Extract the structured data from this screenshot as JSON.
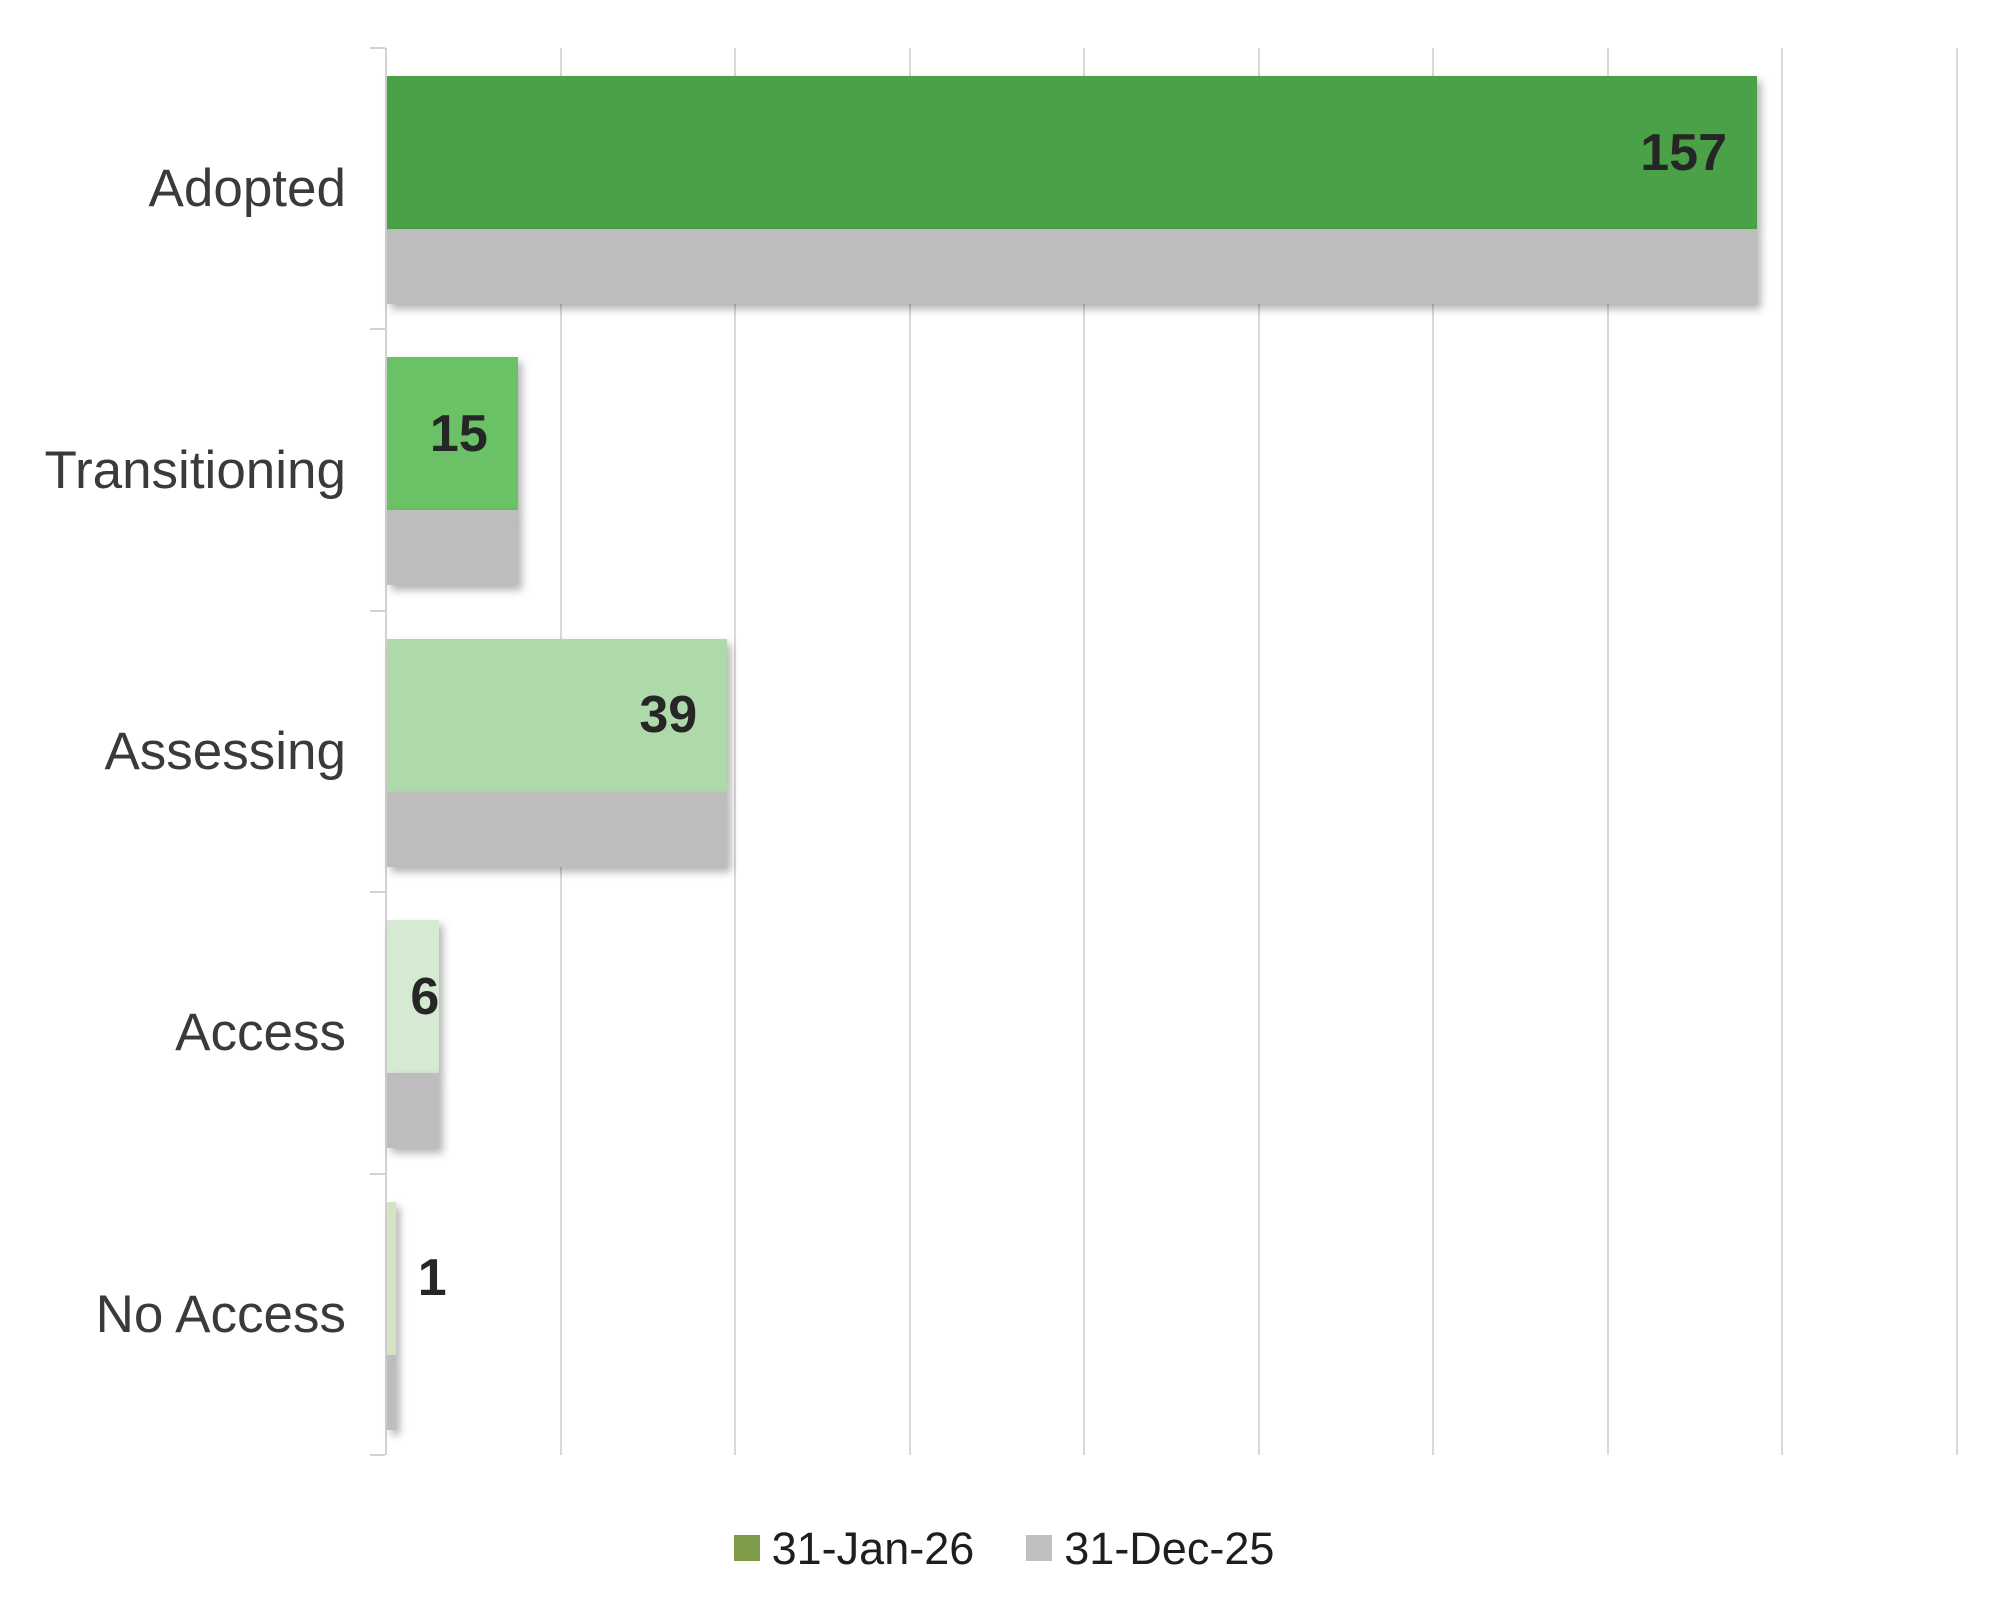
{
  "chart_data": {
    "type": "bar",
    "orientation": "horizontal",
    "title": "",
    "xlabel": "",
    "ylabel": "",
    "categories": [
      "Adopted",
      "Transitioning",
      "Assessing",
      "Access",
      "No Access"
    ],
    "series": [
      {
        "name": "31-Jan-26",
        "values": [
          157,
          15,
          39,
          6,
          1
        ],
        "point_colors": [
          "#4aa147",
          "#6bc166",
          "#aedaab",
          "#d6e9d3",
          "#d5e2c3"
        ],
        "legend_color": "#7e9b4a"
      },
      {
        "name": "31-Dec-25",
        "values": [
          157,
          15,
          39,
          6,
          1
        ],
        "point_colors": [
          "#bdbdbd",
          "#bdbdbd",
          "#bdbdbd",
          "#bdbdbd",
          "#bdbdbd"
        ],
        "legend_color": "#bfbfbf"
      }
    ],
    "data_labels": {
      "series_index": 0,
      "labels": [
        "157",
        "15",
        "39",
        "6",
        "1"
      ]
    },
    "xlim": [
      0,
      180
    ],
    "gridline_interval": 20,
    "grid": true,
    "legend_position": "bottom"
  },
  "styles": {
    "background": "#ffffff",
    "gridline_color": "#d9d9d9",
    "axis_color": "#d2d2d2",
    "category_label_color": "#3a3a3a",
    "data_label_color": "#262626",
    "legend_text_color": "#1e1e1e"
  }
}
